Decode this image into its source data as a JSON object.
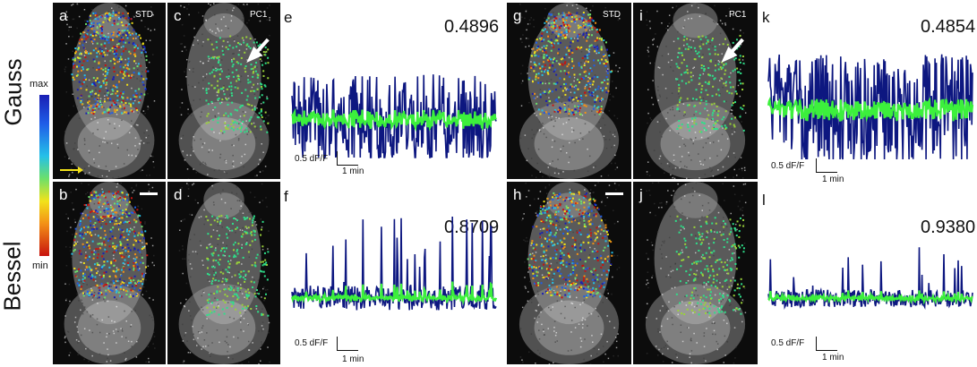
{
  "row_labels": {
    "top": "Gauss",
    "bottom": "Bessel"
  },
  "colorbar": {
    "max_label": "max",
    "min_label": "min",
    "colors": [
      "#1a1fb4",
      "#25c0e8",
      "#6ce06a",
      "#f2e21a",
      "#c8130e"
    ]
  },
  "panels": {
    "a": {
      "letter": "a",
      "tag": "STD"
    },
    "c": {
      "letter": "c",
      "tag": "PC1"
    },
    "b": {
      "letter": "b"
    },
    "d": {
      "letter": "d"
    },
    "g": {
      "letter": "g",
      "tag": "STD"
    },
    "i": {
      "letter": "i",
      "tag": "PC1"
    },
    "h": {
      "letter": "h"
    },
    "j": {
      "letter": "j"
    }
  },
  "traces": {
    "e": {
      "letter": "e",
      "value": "0.4896",
      "scale_y": "0.5 dF/F",
      "scale_x": "1 min"
    },
    "f": {
      "letter": "f",
      "value": "0.8709",
      "scale_y": "0.5 dF/F",
      "scale_x": "1 min"
    },
    "k": {
      "letter": "k",
      "value": "0.4854",
      "scale_y": "0.5 dF/F",
      "scale_x": "1 min"
    },
    "l": {
      "letter": "l",
      "value": "0.9380",
      "scale_y": "0.5 dF/F",
      "scale_x": "1 min"
    }
  },
  "trace_colors": {
    "raw": "#0d1780",
    "pc": "#3cf03c"
  }
}
